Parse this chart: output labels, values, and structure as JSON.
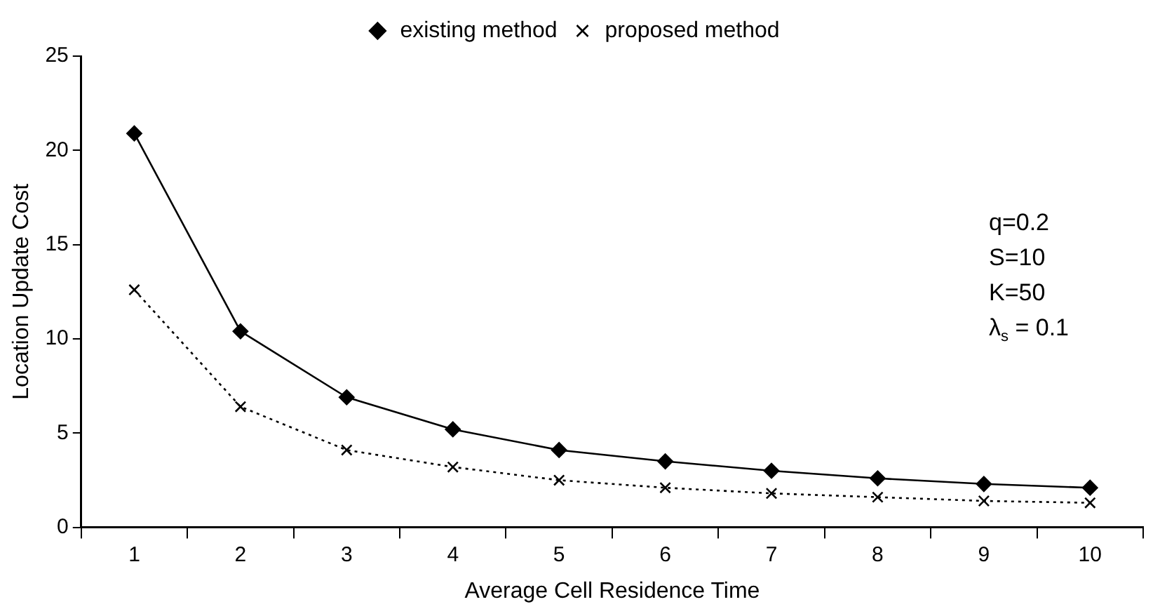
{
  "chart_data": {
    "type": "line",
    "xlabel": "Average Cell Residence Time",
    "ylabel": "Location Update Cost",
    "categories": [
      "1",
      "2",
      "3",
      "4",
      "5",
      "6",
      "7",
      "8",
      "9",
      "10"
    ],
    "series": [
      {
        "name": "existing method",
        "color": "#000000",
        "marker": "diamond",
        "line_style": "solid",
        "values": [
          20.9,
          10.4,
          6.9,
          5.2,
          4.1,
          3.5,
          3.0,
          2.6,
          2.3,
          2.1
        ]
      },
      {
        "name": "proposed method",
        "color": "#000000",
        "marker": "cross",
        "line_style": "dotted",
        "values": [
          12.6,
          6.4,
          4.1,
          3.2,
          2.5,
          2.1,
          1.8,
          1.6,
          1.4,
          1.3
        ]
      }
    ],
    "ylim": [
      0,
      25
    ],
    "yticks": [
      0,
      5,
      10,
      15,
      20,
      25
    ],
    "grid": false,
    "legend": "top",
    "annotations": [
      "q=0.2",
      "S=10",
      "K=50",
      "λ$_{s}$ = 0.1"
    ]
  }
}
